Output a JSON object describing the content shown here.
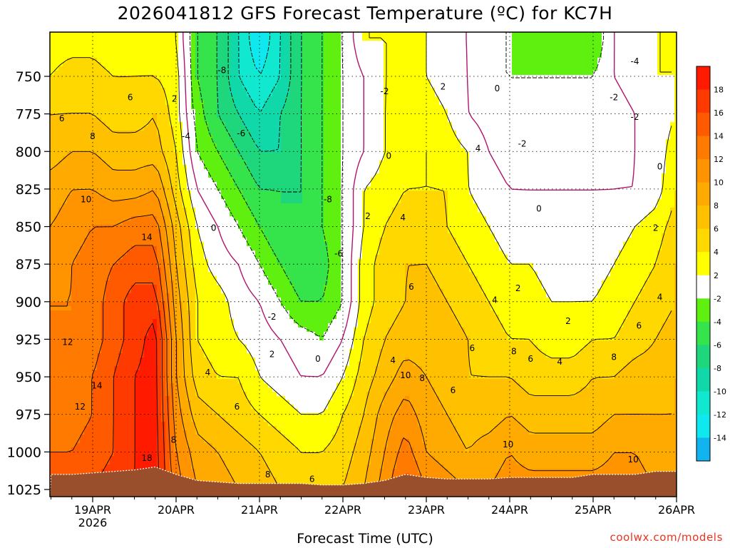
{
  "chart_data": {
    "type": "heatmap",
    "title": "2026041812 GFS Forecast Temperature (ºC) for KC7H",
    "xlabel": "Forecast Time (UTC)",
    "ylabel": "",
    "y_axis": {
      "label": "",
      "inverted": true,
      "ylim": [
        1030,
        725
      ],
      "ticks": [
        750,
        775,
        800,
        825,
        850,
        875,
        900,
        925,
        950,
        975,
        1000,
        1025
      ]
    },
    "x_axis": {
      "ticks": [
        "19APR",
        "20APR",
        "21APR",
        "22APR",
        "23APR",
        "24APR",
        "25APR",
        "26APR"
      ],
      "tick_sublabels": [
        "2026",
        "",
        "",
        "",
        "",
        "",
        "",
        ""
      ],
      "range_days": [
        -0.5,
        7.0
      ]
    },
    "colorbar": {
      "ticks": [
        18,
        16,
        14,
        12,
        10,
        8,
        6,
        4,
        2,
        -2,
        -4,
        -6,
        -8,
        -10,
        -12,
        -14
      ],
      "bins": [
        {
          "lo": 18,
          "hi": 20,
          "color": "#ff1a00"
        },
        {
          "lo": 16,
          "hi": 18,
          "color": "#ff3a00"
        },
        {
          "lo": 14,
          "hi": 16,
          "color": "#ff5a00"
        },
        {
          "lo": 12,
          "hi": 14,
          "color": "#ff7a00"
        },
        {
          "lo": 10,
          "hi": 12,
          "color": "#ff9400"
        },
        {
          "lo": 8,
          "hi": 10,
          "color": "#ffaa00"
        },
        {
          "lo": 6,
          "hi": 8,
          "color": "#ffc000"
        },
        {
          "lo": 4,
          "hi": 6,
          "color": "#ffd800"
        },
        {
          "lo": 2,
          "hi": 4,
          "color": "#ffff00"
        },
        {
          "lo": -2,
          "hi": 2,
          "color": "#ffffff"
        },
        {
          "lo": -4,
          "hi": -2,
          "color": "#5ff00f"
        },
        {
          "lo": -6,
          "hi": -4,
          "color": "#34e44a"
        },
        {
          "lo": -8,
          "hi": -6,
          "color": "#1ed67c"
        },
        {
          "lo": -10,
          "hi": -8,
          "color": "#10d8a8"
        },
        {
          "lo": -12,
          "hi": -10,
          "color": "#10e8d0"
        },
        {
          "lo": -14,
          "hi": -12,
          "color": "#10e8f0"
        },
        {
          "lo": -16,
          "hi": -14,
          "color": "#12b4f0"
        }
      ]
    },
    "ground_color": "#9a4f2c",
    "x_days": [
      -0.5,
      -0.25,
      0,
      0.25,
      0.5,
      0.75,
      1.0,
      1.25,
      1.5,
      1.75,
      2.0,
      2.25,
      2.5,
      2.75,
      3.0,
      3.25,
      3.5,
      3.75,
      4.0,
      4.25,
      4.5,
      4.75,
      5.0,
      5.25,
      5.5,
      5.75,
      6.0,
      6.25,
      6.5,
      6.75,
      7.0
    ],
    "y_levels": [
      725,
      750,
      775,
      800,
      825,
      850,
      875,
      900,
      925,
      950,
      975,
      1000,
      1025
    ],
    "temperature_grid": [
      [
        3,
        3,
        3,
        2,
        3,
        3,
        2,
        -4,
        -6,
        -10,
        -14,
        -10,
        -6,
        -4,
        -2,
        2,
        2,
        2,
        2,
        0,
        0,
        -2,
        -2,
        -4,
        -4,
        -4,
        -4,
        0,
        1,
        2,
        2
      ],
      [
        4,
        5,
        5,
        4,
        4,
        4,
        3,
        -4,
        -6,
        -10,
        -12,
        -10,
        -6,
        -4,
        -2,
        0,
        2,
        2,
        2,
        1,
        0,
        -2,
        -2,
        -2,
        -2,
        -2,
        -2,
        0,
        1,
        2,
        2
      ],
      [
        6,
        6,
        6,
        5,
        5,
        6,
        3,
        -3,
        -6,
        -8,
        -10,
        -8,
        -6,
        -4,
        -2,
        0,
        2,
        3,
        3,
        2,
        0,
        -1,
        -2,
        -2,
        -2,
        -2,
        -2,
        -1,
        0,
        1,
        2
      ],
      [
        7,
        8,
        8,
        7,
        7,
        7,
        4,
        -2,
        -4,
        -6,
        -8,
        -8,
        -6,
        -4,
        -2,
        0,
        2,
        3,
        4,
        3,
        2,
        0,
        -1,
        -2,
        -2,
        -2,
        -2,
        -1,
        0,
        1,
        3
      ],
      [
        9,
        10,
        10,
        9,
        9,
        10,
        5,
        0,
        -2,
        -4,
        -6,
        -6,
        -6,
        -4,
        -2,
        2,
        3,
        4,
        4,
        4,
        2,
        1,
        0,
        0,
        0,
        0,
        0,
        0,
        0,
        1,
        4
      ],
      [
        10,
        11,
        12,
        12,
        13,
        13,
        7,
        2,
        0,
        -2,
        -4,
        -6,
        -6,
        -4,
        -2,
        2,
        4,
        5,
        5,
        4,
        3,
        2,
        1,
        1,
        1,
        1,
        1,
        1,
        2,
        3,
        5
      ],
      [
        11,
        12,
        13,
        14,
        15,
        15,
        8,
        3,
        1,
        0,
        -2,
        -4,
        -6,
        -5,
        -2,
        3,
        5,
        6,
        6,
        5,
        4,
        3,
        2,
        2,
        1,
        1,
        1,
        2,
        3,
        4,
        6
      ],
      [
        12,
        12,
        13,
        15,
        17,
        17,
        9,
        4,
        3,
        1,
        0,
        -2,
        -4,
        -4,
        -2,
        3,
        5,
        6,
        7,
        6,
        5,
        4,
        3,
        3,
        2,
        2,
        2,
        3,
        4,
        5,
        6
      ],
      [
        12,
        12,
        13,
        15,
        17,
        19,
        10,
        4,
        3,
        2,
        1,
        0,
        -1,
        -2,
        0,
        4,
        6,
        7,
        7,
        7,
        6,
        5,
        4,
        4,
        3,
        3,
        4,
        4,
        5,
        6,
        7
      ],
      [
        13,
        13,
        14,
        16,
        18,
        19,
        10,
        5,
        4,
        4,
        2,
        1,
        0,
        0,
        2,
        5,
        7,
        9,
        8,
        7,
        6,
        6,
        6,
        5,
        5,
        5,
        6,
        6,
        7,
        7,
        8
      ],
      [
        13,
        13,
        14,
        16,
        18,
        19,
        11,
        7,
        6,
        5,
        4,
        3,
        2,
        2,
        4,
        6,
        9,
        11,
        9,
        8,
        7,
        7,
        8,
        7,
        7,
        7,
        7,
        8,
        8,
        8,
        8
      ],
      [
        14,
        14,
        15,
        16,
        18,
        19,
        12,
        9,
        8,
        7,
        6,
        5,
        4,
        4,
        5,
        7,
        10,
        13,
        10,
        9,
        8,
        9,
        10,
        9,
        9,
        9,
        9,
        10,
        10,
        9,
        9
      ],
      [
        15,
        15,
        16,
        17,
        18,
        19,
        13,
        10,
        9,
        8,
        7,
        6,
        5,
        5,
        6,
        8,
        11,
        15,
        12,
        11,
        10,
        10,
        11,
        11,
        11,
        11,
        11,
        11,
        11,
        10,
        10
      ]
    ],
    "ground_pressure": [
      1015,
      1015,
      1014,
      1013,
      1012,
      1010,
      1015,
      1019,
      1020,
      1021,
      1021,
      1021,
      1021,
      1022,
      1022,
      1021,
      1019,
      1015,
      1017,
      1018,
      1018,
      1018,
      1017,
      1017,
      1017,
      1017,
      1015,
      1015,
      1015,
      1013,
      1013
    ],
    "contour_labels": [
      {
        "x": 0.98,
        "y": 765,
        "text": "2"
      },
      {
        "x": 0.45,
        "y": 764,
        "text": "6"
      },
      {
        "x": -0.37,
        "y": 778,
        "text": "6"
      },
      {
        "x": 0.0,
        "y": 790,
        "text": "8"
      },
      {
        "x": -0.08,
        "y": 832,
        "text": "10"
      },
      {
        "x": 0.65,
        "y": 857,
        "text": "14"
      },
      {
        "x": -0.3,
        "y": 927,
        "text": "12"
      },
      {
        "x": 0.05,
        "y": 956,
        "text": "14"
      },
      {
        "x": -0.15,
        "y": 970,
        "text": "12"
      },
      {
        "x": 0.65,
        "y": 1004,
        "text": "18"
      },
      {
        "x": 0.97,
        "y": 992,
        "text": "8"
      },
      {
        "x": 1.55,
        "y": 746,
        "text": "-8"
      },
      {
        "x": 1.12,
        "y": 790,
        "text": "-4"
      },
      {
        "x": 1.78,
        "y": 788,
        "text": "-6"
      },
      {
        "x": 2.82,
        "y": 832,
        "text": "-8"
      },
      {
        "x": 2.95,
        "y": 868,
        "text": "-6"
      },
      {
        "x": 2.15,
        "y": 910,
        "text": "-2"
      },
      {
        "x": 1.45,
        "y": 851,
        "text": "0"
      },
      {
        "x": 2.15,
        "y": 935,
        "text": "2"
      },
      {
        "x": 2.7,
        "y": 938,
        "text": "0"
      },
      {
        "x": 1.38,
        "y": 947,
        "text": "4"
      },
      {
        "x": 1.73,
        "y": 970,
        "text": "6"
      },
      {
        "x": 2.1,
        "y": 1015,
        "text": "8"
      },
      {
        "x": 3.5,
        "y": 760,
        "text": "-2"
      },
      {
        "x": 3.3,
        "y": 843,
        "text": "2"
      },
      {
        "x": 3.55,
        "y": 803,
        "text": "0"
      },
      {
        "x": 3.72,
        "y": 844,
        "text": "4"
      },
      {
        "x": 4.2,
        "y": 757,
        "text": "2"
      },
      {
        "x": 4.85,
        "y": 758,
        "text": "0"
      },
      {
        "x": 4.62,
        "y": 798,
        "text": "4"
      },
      {
        "x": 4.32,
        "y": 959,
        "text": "6"
      },
      {
        "x": 3.75,
        "y": 949,
        "text": "10"
      },
      {
        "x": 3.95,
        "y": 951,
        "text": "8"
      },
      {
        "x": 3.6,
        "y": 939,
        "text": "4"
      },
      {
        "x": 3.82,
        "y": 890,
        "text": "6"
      },
      {
        "x": 4.55,
        "y": 931,
        "text": "6"
      },
      {
        "x": 4.82,
        "y": 899,
        "text": "4"
      },
      {
        "x": 5.1,
        "y": 891,
        "text": "2"
      },
      {
        "x": 5.05,
        "y": 933,
        "text": "8"
      },
      {
        "x": 5.25,
        "y": 938,
        "text": "6"
      },
      {
        "x": 4.98,
        "y": 995,
        "text": "10"
      },
      {
        "x": 5.7,
        "y": 913,
        "text": "2"
      },
      {
        "x": 5.6,
        "y": 940,
        "text": "4"
      },
      {
        "x": 6.25,
        "y": 937,
        "text": "8"
      },
      {
        "x": 6.48,
        "y": 1005,
        "text": "10"
      },
      {
        "x": 2.63,
        "y": 1018,
        "text": "6"
      },
      {
        "x": 6.55,
        "y": 916,
        "text": "6"
      },
      {
        "x": 6.8,
        "y": 897,
        "text": "4"
      },
      {
        "x": 6.75,
        "y": 851,
        "text": "2"
      },
      {
        "x": 6.8,
        "y": 810,
        "text": "0"
      },
      {
        "x": 6.5,
        "y": 777,
        "text": "-2"
      },
      {
        "x": 6.25,
        "y": 764,
        "text": "-2"
      },
      {
        "x": 5.15,
        "y": 795,
        "text": "-2"
      },
      {
        "x": 6.5,
        "y": 740,
        "text": "-4"
      },
      {
        "x": 5.35,
        "y": 838,
        "text": "0"
      }
    ]
  },
  "credit": "coolwx.com/models"
}
